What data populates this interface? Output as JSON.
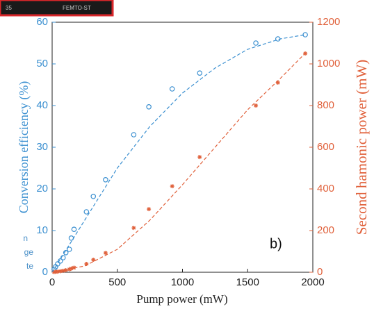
{
  "inset": {
    "texts": [
      "35",
      "FEMTO-ST"
    ]
  },
  "side_text": [
    "n",
    "ge",
    "te"
  ],
  "chart_data": {
    "type": "scatter",
    "xlabel": "Pump power (mW)",
    "ylabel": "Conversion efficiency (%)",
    "y2label": "Second hamonic power (mW)",
    "annotation": "b)",
    "xlim": [
      0,
      2000
    ],
    "xticks": [
      0,
      500,
      1000,
      1500,
      2000
    ],
    "ylim": [
      0,
      60
    ],
    "yticks": [
      0,
      10,
      20,
      30,
      40,
      50,
      60
    ],
    "y2lim": [
      0,
      1200
    ],
    "y2ticks": [
      0,
      200,
      400,
      600,
      800,
      1000,
      1200
    ],
    "grid": false,
    "series": [
      {
        "color": "#3a8fd0",
        "marker": "circle",
        "axis": "y",
        "x": [
          15,
          26,
          42,
          63,
          84,
          105,
          132,
          147,
          168,
          263,
          316,
          410,
          626,
          742,
          921,
          1132,
          1563,
          1732,
          1942
        ],
        "values": [
          0.7,
          1.3,
          2,
          2.7,
          3.5,
          4.7,
          5.5,
          8.2,
          10.3,
          14.5,
          18.2,
          22.2,
          33,
          39.7,
          44,
          47.8,
          55,
          56,
          57
        ]
      },
      {
        "color": "#e0603a",
        "marker": "star",
        "axis": "y2",
        "x": [
          15,
          26,
          42,
          63,
          84,
          105,
          132,
          147,
          168,
          263,
          316,
          410,
          626,
          742,
          921,
          1132,
          1563,
          1732,
          1942
        ],
        "values": [
          1,
          2,
          3,
          5,
          7,
          10,
          14,
          18,
          22,
          40,
          60,
          93,
          213,
          303,
          413,
          553,
          800,
          910,
          1050
        ]
      },
      {
        "color": "#3a8fd0",
        "marker": "dashed",
        "axis": "y",
        "x": [
          0,
          250,
          500,
          750,
          1000,
          1250,
          1500,
          1750,
          1940
        ],
        "values": [
          0,
          12.5,
          25,
          35,
          43,
          49,
          53.5,
          56,
          57
        ]
      },
      {
        "color": "#e0603a",
        "marker": "dashed",
        "axis": "y2",
        "x": [
          0,
          250,
          500,
          750,
          1000,
          1250,
          1500,
          1750,
          1940
        ],
        "values": [
          0,
          30,
          110,
          250,
          420,
          600,
          780,
          930,
          1050
        ]
      }
    ]
  }
}
